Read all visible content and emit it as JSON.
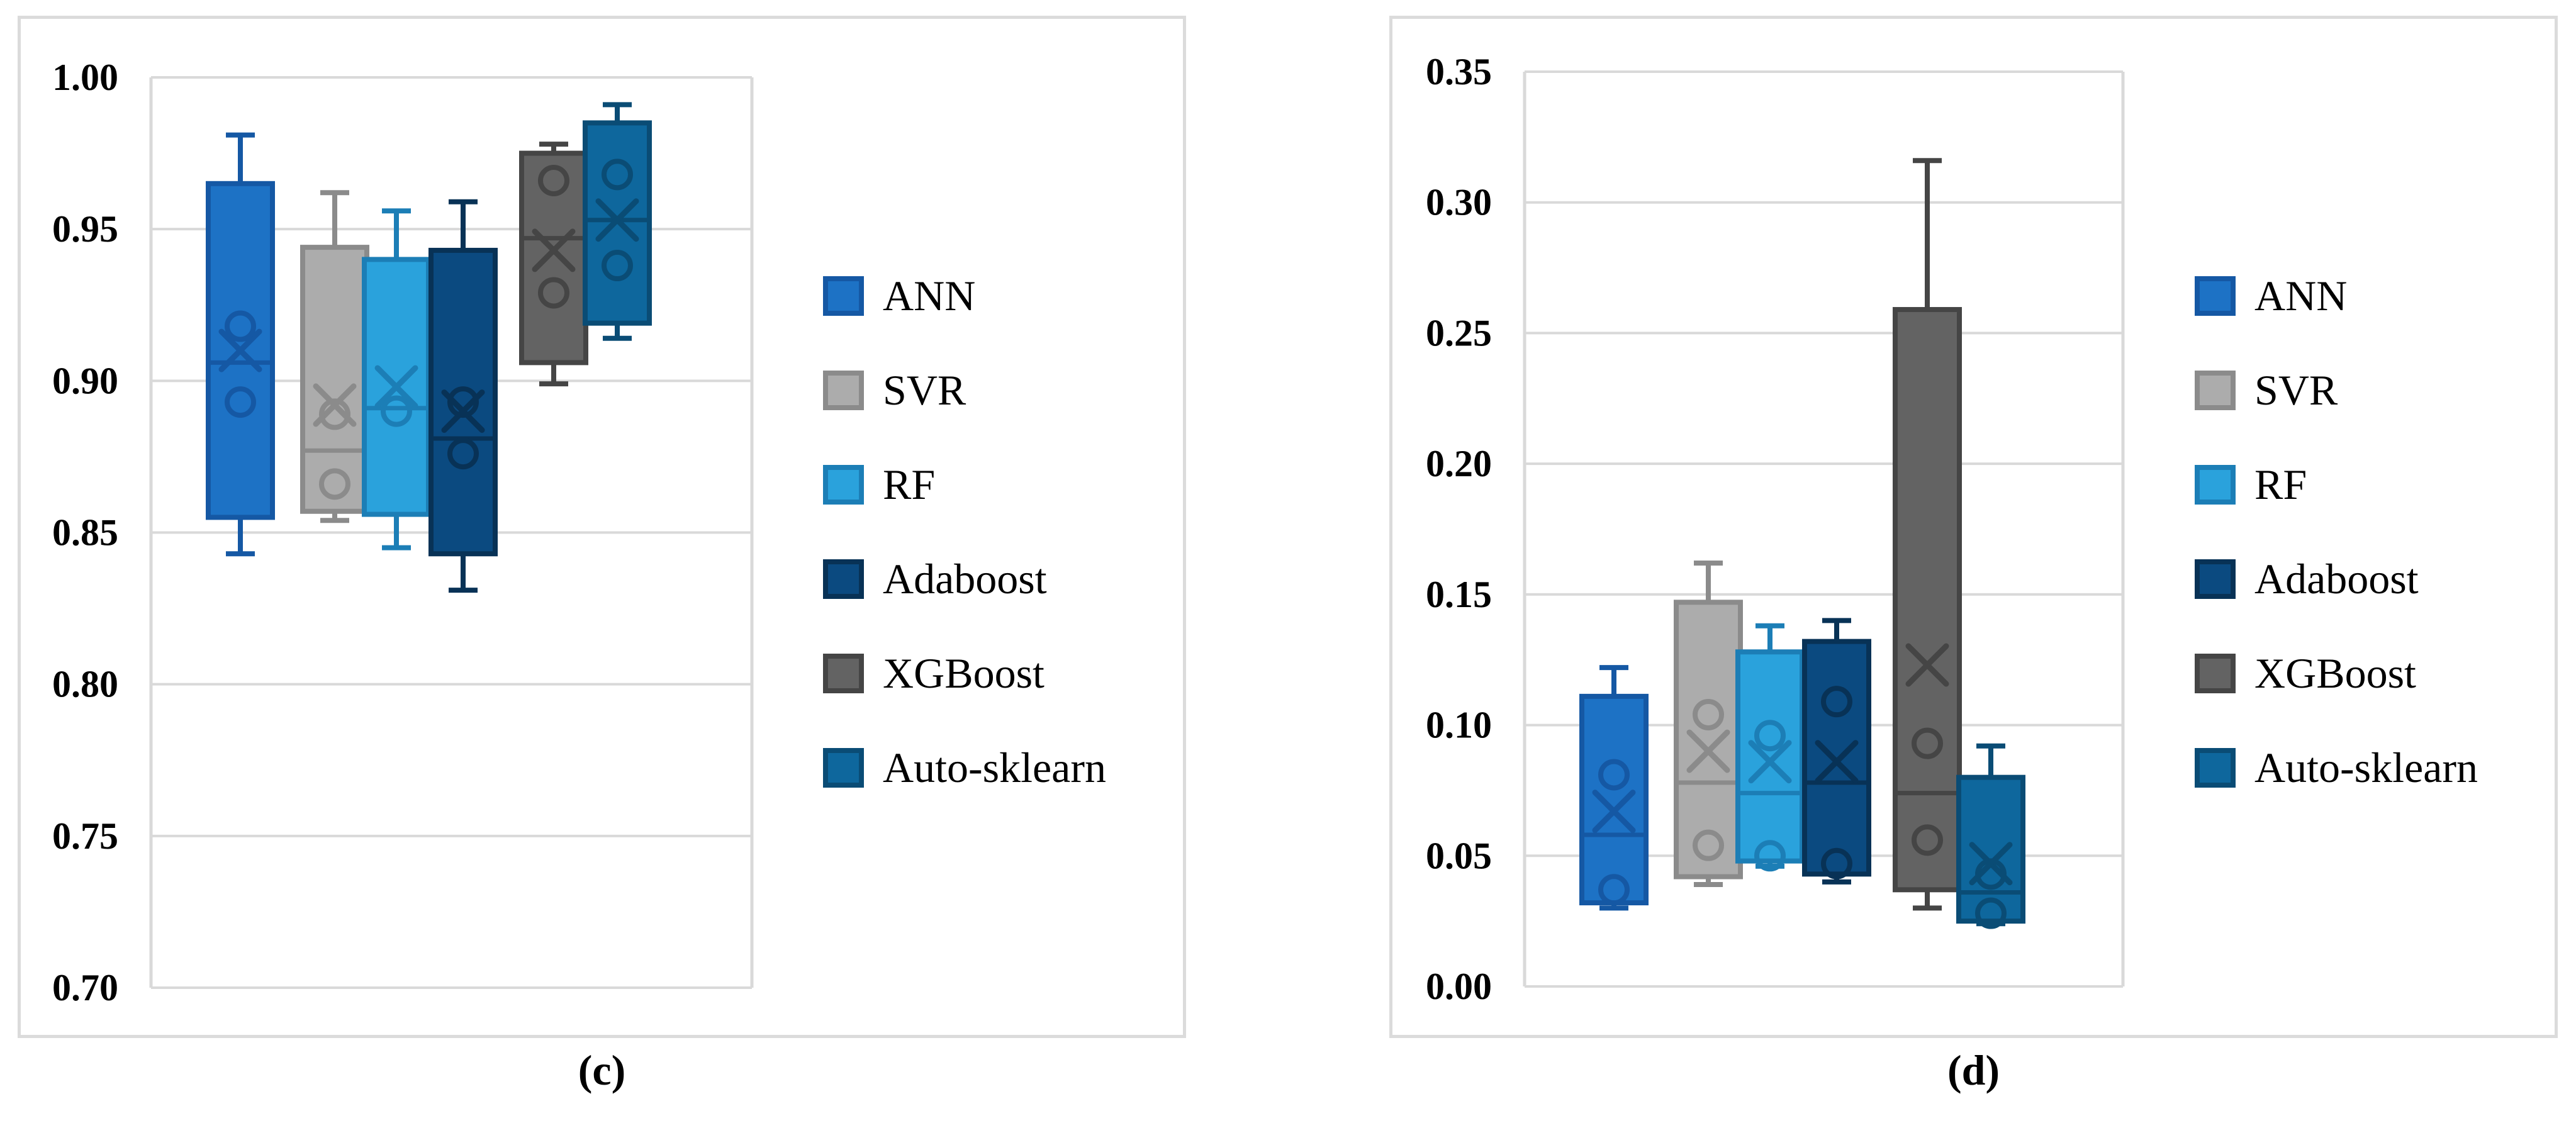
{
  "page": {
    "background_color": "#ffffff",
    "grid_color": "#D9D9D9",
    "panel_border_color": "#DBDBDB"
  },
  "captions": {
    "c": "(c)",
    "d": "(d)"
  },
  "legend": {
    "items": [
      {
        "label": "ANN",
        "fill": "#1D72C5",
        "stroke": "#1558A4"
      },
      {
        "label": "SVR",
        "fill": "#ACACAC",
        "stroke": "#8B8B8B"
      },
      {
        "label": "RF",
        "fill": "#2AA2DC",
        "stroke": "#1C7EB6"
      },
      {
        "label": "Adaboost",
        "fill": "#0B4A80",
        "stroke": "#083256"
      },
      {
        "label": "XGBoost",
        "fill": "#636363",
        "stroke": "#454545"
      },
      {
        "label": "Auto-sklearn",
        "fill": "#0E679D",
        "stroke": "#0A4C75"
      }
    ]
  },
  "chart_data": [
    {
      "id": "c",
      "type": "box",
      "caption": "(c)",
      "ylim": [
        0.7,
        1.0
      ],
      "ytick_step": 0.05,
      "ytick_labels": [
        "1.00",
        "0.95",
        "0.90",
        "0.85",
        "0.80",
        "0.75",
        "0.70"
      ],
      "grid": true,
      "legend_position": "right",
      "categories": [
        "ANN",
        "SVR",
        "RF",
        "Adaboost",
        "XGBoost",
        "Auto-sklearn"
      ],
      "series": [
        {
          "name": "ANN",
          "fill": "#1D72C5",
          "stroke": "#1558A4",
          "whisker_low": 0.843,
          "q1": 0.855,
          "median": 0.906,
          "q3": 0.965,
          "whisker_high": 0.981,
          "mean": 0.91,
          "points": [
            0.918,
            0.893
          ]
        },
        {
          "name": "SVR",
          "fill": "#ACACAC",
          "stroke": "#8B8B8B",
          "whisker_low": 0.854,
          "q1": 0.857,
          "median": 0.877,
          "q3": 0.944,
          "whisker_high": 0.962,
          "mean": 0.892,
          "points": [
            0.889,
            0.866
          ]
        },
        {
          "name": "RF",
          "fill": "#2AA2DC",
          "stroke": "#1C7EB6",
          "whisker_low": 0.845,
          "q1": 0.856,
          "median": 0.891,
          "q3": 0.94,
          "whisker_high": 0.956,
          "mean": 0.898,
          "points": [
            0.89
          ]
        },
        {
          "name": "Adaboost",
          "fill": "#0B4A80",
          "stroke": "#083256",
          "whisker_low": 0.831,
          "q1": 0.843,
          "median": 0.881,
          "q3": 0.943,
          "whisker_high": 0.959,
          "mean": 0.89,
          "points": [
            0.893,
            0.876
          ]
        },
        {
          "name": "XGBoost",
          "fill": "#636363",
          "stroke": "#454545",
          "whisker_low": 0.899,
          "q1": 0.906,
          "median": 0.947,
          "q3": 0.975,
          "whisker_high": 0.978,
          "mean": 0.943,
          "points": [
            0.966,
            0.929
          ]
        },
        {
          "name": "Auto-sklearn",
          "fill": "#0E679D",
          "stroke": "#0A4C75",
          "whisker_low": 0.914,
          "q1": 0.919,
          "median": 0.953,
          "q3": 0.985,
          "whisker_high": 0.991,
          "mean": 0.953,
          "points": [
            0.968,
            0.938
          ]
        }
      ]
    },
    {
      "id": "d",
      "type": "box",
      "caption": "(d)",
      "ylim": [
        0.0,
        0.35
      ],
      "ytick_step": 0.05,
      "ytick_labels": [
        "0.35",
        "0.30",
        "0.25",
        "0.20",
        "0.15",
        "0.10",
        "0.05",
        "0.00"
      ],
      "grid": true,
      "legend_position": "right",
      "categories": [
        "ANN",
        "SVR",
        "RF",
        "Adaboost",
        "XGBoost",
        "Auto-sklearn"
      ],
      "series": [
        {
          "name": "ANN",
          "fill": "#1D72C5",
          "stroke": "#1558A4",
          "whisker_low": 0.03,
          "q1": 0.032,
          "median": 0.058,
          "q3": 0.111,
          "whisker_high": 0.122,
          "mean": 0.067,
          "points": [
            0.081,
            0.037
          ]
        },
        {
          "name": "SVR",
          "fill": "#ACACAC",
          "stroke": "#8B8B8B",
          "whisker_low": 0.039,
          "q1": 0.042,
          "median": 0.078,
          "q3": 0.147,
          "whisker_high": 0.162,
          "mean": 0.09,
          "points": [
            0.104,
            0.054
          ]
        },
        {
          "name": "RF",
          "fill": "#2AA2DC",
          "stroke": "#1C7EB6",
          "whisker_low": 0.046,
          "q1": 0.048,
          "median": 0.074,
          "q3": 0.128,
          "whisker_high": 0.138,
          "mean": 0.086,
          "points": [
            0.096,
            0.05
          ]
        },
        {
          "name": "Adaboost",
          "fill": "#0B4A80",
          "stroke": "#083256",
          "whisker_low": 0.04,
          "q1": 0.043,
          "median": 0.078,
          "q3": 0.132,
          "whisker_high": 0.14,
          "mean": 0.086,
          "points": [
            0.109,
            0.047
          ]
        },
        {
          "name": "XGBoost",
          "fill": "#636363",
          "stroke": "#454545",
          "whisker_low": 0.03,
          "q1": 0.037,
          "median": 0.074,
          "q3": 0.259,
          "whisker_high": 0.316,
          "mean": 0.123,
          "points": [
            0.093,
            0.056
          ]
        },
        {
          "name": "Auto-sklearn",
          "fill": "#0E679D",
          "stroke": "#0A4C75",
          "whisker_low": 0.024,
          "q1": 0.025,
          "median": 0.036,
          "q3": 0.08,
          "whisker_high": 0.092,
          "mean": 0.047,
          "points": [
            0.043,
            0.028
          ]
        }
      ]
    }
  ]
}
